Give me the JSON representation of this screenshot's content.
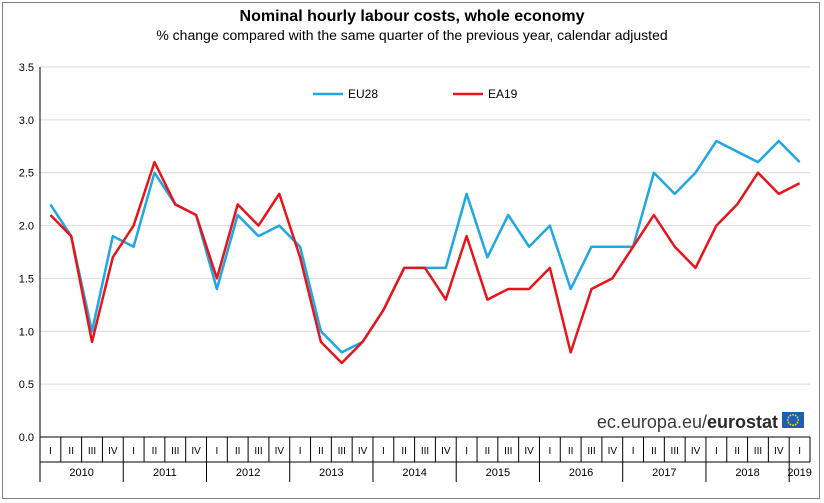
{
  "chart_data": {
    "type": "line",
    "title": "Nominal hourly labour costs, whole economy",
    "subtitle": "% change compared with the same quarter of the previous year, calendar adjusted",
    "ylim": [
      0,
      3.5
    ],
    "yticks": [
      "0.0",
      "0.5",
      "1.0",
      "1.5",
      "2.0",
      "2.5",
      "3.0",
      "3.5"
    ],
    "quarter_labels": [
      "I",
      "II",
      "III",
      "IV"
    ],
    "years": [
      "2010",
      "2011",
      "2012",
      "2013",
      "2014",
      "2015",
      "2016",
      "2017",
      "2018",
      "2019"
    ],
    "series": [
      {
        "name": "EU28",
        "color": "#1ea7e1",
        "values": [
          2.2,
          1.9,
          1.0,
          1.9,
          1.8,
          2.5,
          2.2,
          2.1,
          1.4,
          2.1,
          1.9,
          2.0,
          1.8,
          1.0,
          0.8,
          0.9,
          1.2,
          1.6,
          1.6,
          1.6,
          2.3,
          1.7,
          2.1,
          1.8,
          2.0,
          1.4,
          1.8,
          1.8,
          1.8,
          2.5,
          2.3,
          2.5,
          2.8,
          2.7,
          2.6,
          2.8,
          2.6
        ]
      },
      {
        "name": "EA19",
        "color": "#e8141b",
        "values": [
          2.1,
          1.9,
          0.9,
          1.7,
          2.0,
          2.6,
          2.2,
          2.1,
          1.5,
          2.2,
          2.0,
          2.3,
          1.7,
          0.9,
          0.7,
          0.9,
          1.2,
          1.6,
          1.6,
          1.3,
          1.9,
          1.3,
          1.4,
          1.4,
          1.6,
          0.8,
          1.4,
          1.5,
          1.8,
          2.1,
          1.8,
          1.6,
          2.0,
          2.2,
          2.5,
          2.3,
          2.4
        ]
      }
    ]
  },
  "source": {
    "prefix": "ec.europa.eu/",
    "brand": "eurostat",
    "flag_color": "#1f5fb0",
    "star_color": "#ffdd00"
  }
}
